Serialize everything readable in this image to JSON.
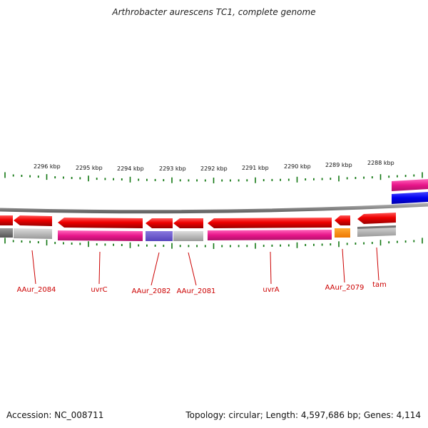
{
  "title": "Arthrobacter aurescens TC1, complete genome",
  "footer": {
    "accession": "Accession: NC_008711",
    "summary": "Topology: circular; Length: 4,597,686 bp; Genes: 4,114"
  },
  "scale_labels": [
    {
      "text": "2296 kbp",
      "kbp": 2296
    },
    {
      "text": "2295 kbp",
      "kbp": 2295
    },
    {
      "text": "2294 kbp",
      "kbp": 2294
    },
    {
      "text": "2293 kbp",
      "kbp": 2293
    },
    {
      "text": "2292 kbp",
      "kbp": 2292
    },
    {
      "text": "2291 kbp",
      "kbp": 2291
    },
    {
      "text": "2290 kbp",
      "kbp": 2290
    },
    {
      "text": "2289 kbp",
      "kbp": 2289
    },
    {
      "text": "2288 kbp",
      "kbp": 2288
    }
  ],
  "gene_labels": [
    {
      "text": "AAur_2084"
    },
    {
      "text": "uvrC"
    },
    {
      "text": "AAur_2082"
    },
    {
      "text": "AAur_2081"
    },
    {
      "text": "uvrA"
    },
    {
      "text": "AAur_2079"
    },
    {
      "text": "tam"
    }
  ],
  "colors": {
    "cds": "#ee0000",
    "cog_magenta": "#e8168a",
    "cog_blue_violet": "#6655cc",
    "cog_orange": "#ff8800",
    "cog_gray": "#aaaaaa",
    "backbone": "#777777",
    "ticks": "#117711",
    "label": "#cc0000"
  }
}
